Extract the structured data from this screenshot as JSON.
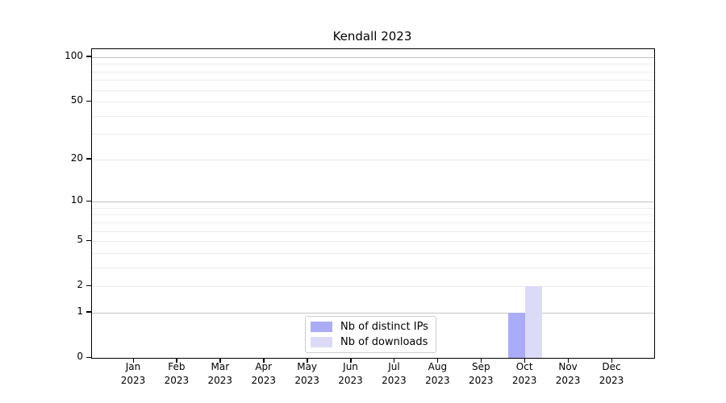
{
  "figure": {
    "title": "Kendall 2023"
  },
  "chart_data": {
    "type": "bar",
    "title": "Kendall 2023",
    "year_label": "2023",
    "categories": [
      "Jan",
      "Feb",
      "Mar",
      "Apr",
      "May",
      "Jun",
      "Jul",
      "Aug",
      "Sep",
      "Oct",
      "Nov",
      "Dec"
    ],
    "series": [
      {
        "name": "Nb of distinct IPs",
        "color": "#abacf8",
        "values": [
          0,
          0,
          0,
          0,
          0,
          0,
          0,
          0,
          0,
          1,
          0,
          0
        ]
      },
      {
        "name": "Nb of downloads",
        "color": "#dbdbf8",
        "values": [
          0,
          0,
          0,
          0,
          0,
          0,
          0,
          0,
          0,
          2,
          0,
          0
        ]
      }
    ],
    "y_scale": "log1p",
    "ylim": [
      0,
      113
    ],
    "y_ticks": [
      0,
      1,
      2,
      5,
      10,
      20,
      50,
      100
    ],
    "major_grid": [
      1,
      10,
      100
    ],
    "minor_grid": [
      2,
      3,
      4,
      5,
      6,
      7,
      8,
      9,
      20,
      30,
      40,
      50,
      60,
      70,
      80,
      90
    ],
    "grid_major_color": "#c3c3c3",
    "grid_minor_color": "#ececec",
    "legend": {
      "position": "lower center",
      "entries": [
        "Nb of distinct IPs",
        "Nb of downloads"
      ]
    }
  }
}
